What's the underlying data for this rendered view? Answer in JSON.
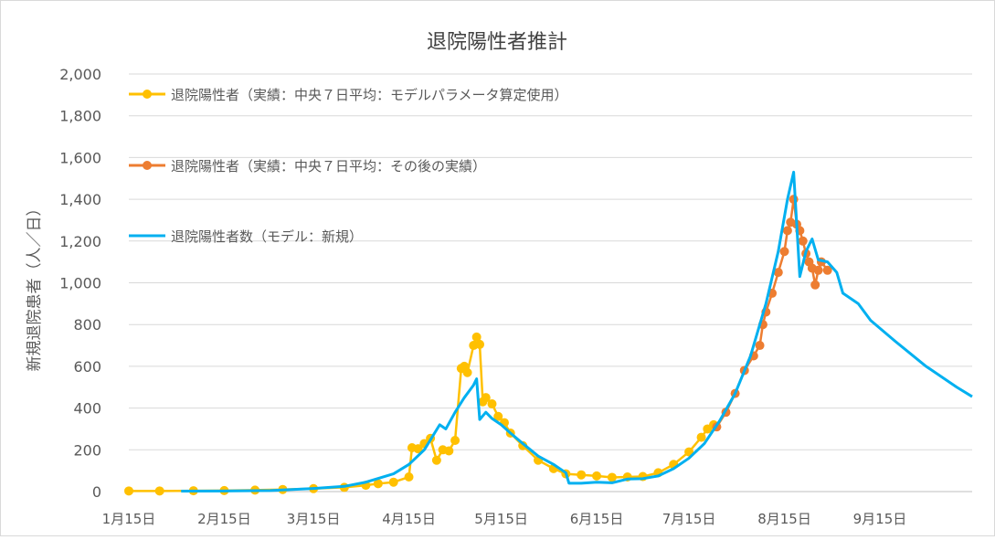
{
  "chart_data": {
    "type": "line",
    "title": "退院陽性者推計",
    "ylabel": "新規退院患者（人／日）",
    "xlabel": "",
    "ylim": [
      0,
      2000
    ],
    "yticks": [
      0,
      200,
      400,
      600,
      800,
      1000,
      1200,
      1400,
      1600,
      1800,
      2000
    ],
    "ytick_labels": [
      "0",
      "200",
      "400",
      "600",
      "800",
      "1,000",
      "1,200",
      "1,400",
      "1,600",
      "1,800",
      "2,000"
    ],
    "x_start": "1/15",
    "x_end": "10/15",
    "xtick_labels": [
      "1月15日",
      "2月15日",
      "3月15日",
      "4月15日",
      "5月15日",
      "6月15日",
      "7月15日",
      "8月15日",
      "9月15日"
    ],
    "grid": true,
    "legend_position": "top-left",
    "colors": {
      "series_yellow": "#FFC000",
      "series_orange": "#ED7D31",
      "series_blue": "#00B0F0",
      "grid": "#d9d9d9",
      "axis_text": "#595959"
    },
    "series": [
      {
        "name": "退院陽性者（実績：中央７日平均：モデルパラメータ算定使用）",
        "marker": "circle",
        "points": [
          [
            "1/15",
            3
          ],
          [
            "1/25",
            3
          ],
          [
            "2/5",
            4
          ],
          [
            "2/15",
            5
          ],
          [
            "2/25",
            7
          ],
          [
            "3/5",
            10
          ],
          [
            "3/15",
            14
          ],
          [
            "3/25",
            20
          ],
          [
            "4/1",
            30
          ],
          [
            "4/5",
            38
          ],
          [
            "4/10",
            45
          ],
          [
            "4/15",
            70
          ],
          [
            "4/16",
            210
          ],
          [
            "4/18",
            205
          ],
          [
            "4/20",
            230
          ],
          [
            "4/22",
            255
          ],
          [
            "4/24",
            150
          ],
          [
            "4/26",
            200
          ],
          [
            "4/28",
            195
          ],
          [
            "4/30",
            245
          ],
          [
            "5/2",
            590
          ],
          [
            "5/3",
            600
          ],
          [
            "5/4",
            570
          ],
          [
            "5/6",
            700
          ],
          [
            "5/7",
            740
          ],
          [
            "5/8",
            705
          ],
          [
            "5/9",
            430
          ],
          [
            "5/10",
            450
          ],
          [
            "5/12",
            420
          ],
          [
            "5/14",
            360
          ],
          [
            "5/16",
            330
          ],
          [
            "5/18",
            280
          ],
          [
            "5/22",
            220
          ],
          [
            "5/27",
            150
          ],
          [
            "6/1",
            110
          ],
          [
            "6/5",
            85
          ],
          [
            "6/10",
            80
          ],
          [
            "6/15",
            75
          ],
          [
            "6/20",
            68
          ],
          [
            "6/25",
            70
          ],
          [
            "6/30",
            72
          ],
          [
            "7/5",
            90
          ],
          [
            "7/10",
            130
          ],
          [
            "7/15",
            190
          ],
          [
            "7/19",
            260
          ],
          [
            "7/21",
            300
          ],
          [
            "7/23",
            320
          ]
        ]
      },
      {
        "name": "退院陽性者（実績：中央７日平均：その後の実績）",
        "marker": "circle",
        "points": [
          [
            "7/24",
            310
          ],
          [
            "7/27",
            380
          ],
          [
            "7/30",
            470
          ],
          [
            "8/2",
            580
          ],
          [
            "8/5",
            650
          ],
          [
            "8/7",
            700
          ],
          [
            "8/8",
            800
          ],
          [
            "8/9",
            860
          ],
          [
            "8/11",
            950
          ],
          [
            "8/13",
            1050
          ],
          [
            "8/15",
            1150
          ],
          [
            "8/16",
            1250
          ],
          [
            "8/17",
            1290
          ],
          [
            "8/18",
            1400
          ],
          [
            "8/19",
            1280
          ],
          [
            "8/20",
            1250
          ],
          [
            "8/21",
            1200
          ],
          [
            "8/22",
            1140
          ],
          [
            "8/23",
            1100
          ],
          [
            "8/24",
            1070
          ],
          [
            "8/25",
            990
          ],
          [
            "8/26",
            1060
          ],
          [
            "8/27",
            1100
          ],
          [
            "8/29",
            1060
          ]
        ]
      },
      {
        "name": "退院陽性者数（モデル：新規）",
        "marker": "none",
        "points": [
          [
            "2/1",
            2
          ],
          [
            "2/15",
            3
          ],
          [
            "3/1",
            5
          ],
          [
            "3/15",
            15
          ],
          [
            "3/25",
            25
          ],
          [
            "4/1",
            45
          ],
          [
            "4/10",
            85
          ],
          [
            "4/15",
            130
          ],
          [
            "4/20",
            200
          ],
          [
            "4/25",
            320
          ],
          [
            "4/27",
            300
          ],
          [
            "4/30",
            380
          ],
          [
            "5/3",
            450
          ],
          [
            "5/6",
            510
          ],
          [
            "5/7",
            540
          ],
          [
            "5/8",
            345
          ],
          [
            "5/10",
            380
          ],
          [
            "5/12",
            350
          ],
          [
            "5/15",
            320
          ],
          [
            "5/18",
            280
          ],
          [
            "5/22",
            230
          ],
          [
            "5/27",
            170
          ],
          [
            "6/1",
            130
          ],
          [
            "6/5",
            90
          ],
          [
            "6/6",
            40
          ],
          [
            "6/10",
            40
          ],
          [
            "6/15",
            45
          ],
          [
            "6/20",
            42
          ],
          [
            "6/25",
            60
          ],
          [
            "6/30",
            62
          ],
          [
            "7/5",
            75
          ],
          [
            "7/10",
            110
          ],
          [
            "7/15",
            160
          ],
          [
            "7/20",
            230
          ],
          [
            "7/25",
            340
          ],
          [
            "7/30",
            470
          ],
          [
            "8/4",
            650
          ],
          [
            "8/9",
            900
          ],
          [
            "8/13",
            1150
          ],
          [
            "8/16",
            1400
          ],
          [
            "8/18",
            1530
          ],
          [
            "8/20",
            1030
          ],
          [
            "8/22",
            1150
          ],
          [
            "8/24",
            1210
          ],
          [
            "8/26",
            1110
          ],
          [
            "8/29",
            1100
          ],
          [
            "9/1",
            1050
          ],
          [
            "9/3",
            950
          ],
          [
            "9/8",
            900
          ],
          [
            "9/12",
            820
          ],
          [
            "9/20",
            720
          ],
          [
            "9/30",
            600
          ],
          [
            "10/10",
            500
          ],
          [
            "10/15",
            455
          ]
        ]
      }
    ]
  }
}
